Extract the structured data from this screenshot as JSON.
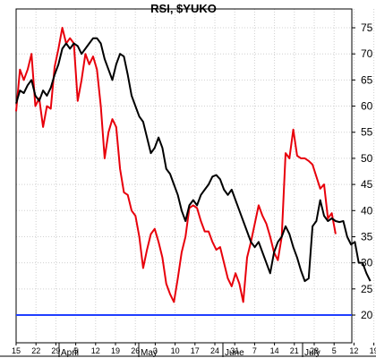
{
  "chart_data": {
    "type": "line",
    "title": "RSI, $YUKO",
    "xlabel": "",
    "ylabel": "",
    "ylim": [
      17,
      80
    ],
    "y_ticks": [
      20,
      25,
      30,
      35,
      40,
      45,
      50,
      55,
      60,
      65,
      70,
      75
    ],
    "x_day_ticks": [
      "15",
      "22",
      "29",
      "5",
      "12",
      "19",
      "26",
      "3",
      "10",
      "17",
      "24",
      "31",
      "7",
      "14",
      "21",
      "28",
      "5",
      "12",
      "19"
    ],
    "months": [
      "April",
      "May",
      "June",
      "July"
    ],
    "grid": true,
    "reference_line": {
      "value": 20,
      "color": "#1f3fff"
    },
    "series": [
      {
        "color": "#000000",
        "values": [
          60.5,
          63,
          62.5,
          64,
          65,
          62,
          61,
          63,
          62,
          63.5,
          66,
          68,
          71,
          72,
          71,
          72,
          71.5,
          70,
          71,
          72,
          73,
          73,
          72,
          69,
          67,
          65,
          68,
          70,
          69.5,
          66,
          62,
          60,
          58,
          57,
          54,
          51,
          52,
          54,
          52,
          48,
          47,
          45,
          43,
          40,
          38,
          41,
          42,
          41,
          43,
          44,
          45,
          46.5,
          46.8,
          46,
          44,
          43,
          44,
          42,
          40,
          38,
          36,
          34,
          33,
          34,
          32,
          30,
          28,
          32,
          34,
          35,
          37,
          35.5,
          33,
          31,
          28.5,
          26.5,
          27,
          37,
          38,
          42,
          39,
          38,
          38.5,
          38,
          37.8,
          38,
          35,
          33.5,
          34,
          30,
          30,
          28,
          26.5
        ]
      },
      {
        "color": "#e8000b",
        "values": [
          59,
          67,
          65,
          67,
          70,
          60,
          61.5,
          56,
          60,
          59.5,
          67.5,
          71,
          75,
          72,
          73,
          72,
          61,
          65,
          70,
          68,
          69.5,
          67,
          60,
          50,
          55,
          57.5,
          56,
          48,
          43.5,
          43,
          40,
          39,
          35,
          29,
          32.5,
          35.5,
          36.5,
          34,
          31,
          26,
          24,
          22.5,
          27,
          32,
          35,
          40.5,
          41,
          40.5,
          38,
          36,
          36,
          34,
          32.5,
          33,
          30,
          27,
          25.5,
          28,
          26,
          22.5,
          31,
          34,
          37.5,
          41,
          39,
          37.5,
          35,
          32,
          30.5,
          35,
          51,
          50,
          55.5,
          50.5,
          50,
          50,
          49.5,
          48.8,
          46.5,
          44.2,
          45,
          38.5,
          39.5,
          35.5
        ]
      }
    ]
  }
}
